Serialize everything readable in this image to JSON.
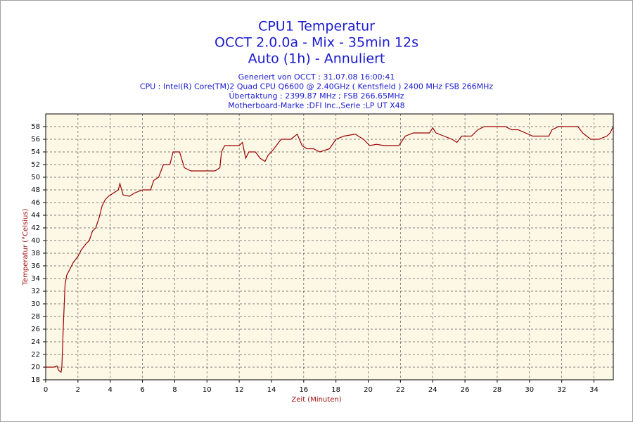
{
  "chart_data": {
    "type": "line",
    "title": [
      "CPU1 Temperatur",
      "OCCT 2.0.0a - Mix - 35min 12s",
      "Auto (1h) - Annuliert"
    ],
    "subtitle": [
      "Generiert von OCCT : 31.07.08 16:00:41",
      "CPU : Intel(R) Core(TM)2 Quad CPU Q6600 @ 2.40GHz ( Kentsfield ) 2400 MHz FSB 266MHz",
      "Übertaktung : 2399.87 MHz ; FSB 266.65MHz",
      "Motherboard-Marke :DFI Inc.,Serie :LP UT X48"
    ],
    "x_label": "Zeit (Minuten)",
    "y_label": "Temperatur (°Celsius)",
    "xlim": [
      0,
      35.2
    ],
    "ylim": [
      18,
      60
    ],
    "xticks": [
      0,
      2,
      4,
      6,
      8,
      10,
      12,
      14,
      16,
      18,
      20,
      22,
      24,
      26,
      28,
      30,
      32,
      34
    ],
    "yticks": [
      18,
      20,
      22,
      24,
      26,
      28,
      30,
      32,
      34,
      36,
      38,
      40,
      42,
      44,
      46,
      48,
      50,
      52,
      54,
      56,
      58
    ],
    "grid": true,
    "x": [
      0,
      0.5,
      0.7,
      0.8,
      0.95,
      1.0,
      1.1,
      1.2,
      1.3,
      1.5,
      1.7,
      2.0,
      2.2,
      2.5,
      2.7,
      2.9,
      3.1,
      3.3,
      3.5,
      3.7,
      3.9,
      4.2,
      4.5,
      4.6,
      4.8,
      5.2,
      5.5,
      6.0,
      6.5,
      6.7,
      7.0,
      7.3,
      7.7,
      7.9,
      8.3,
      8.6,
      9.0,
      9.5,
      10.5,
      10.8,
      10.9,
      11.1,
      12.0,
      12.2,
      12.4,
      12.6,
      13.0,
      13.3,
      13.6,
      13.8,
      14.0,
      14.3,
      14.6,
      15.2,
      15.6,
      15.9,
      16.2,
      16.6,
      17.0,
      17.6,
      18.0,
      18.5,
      19.2,
      19.7,
      20.1,
      20.5,
      21.0,
      21.9,
      22.3,
      22.8,
      23.8,
      24.0,
      24.2,
      24.7,
      25.2,
      25.5,
      25.8,
      26.4,
      26.8,
      27.2,
      28.5,
      28.9,
      29.3,
      30.2,
      31.2,
      31.4,
      31.8,
      33.0,
      33.3,
      33.8,
      34.3,
      34.8,
      35.0,
      35.2
    ],
    "series": [
      {
        "color": "#990000",
        "values": [
          20,
          20,
          20.2,
          19.5,
          19.2,
          20,
          27,
          33,
          34.5,
          35.5,
          36.5,
          37.5,
          38.5,
          39.5,
          40,
          41.5,
          42,
          43.5,
          45.5,
          46.5,
          47,
          47.5,
          48,
          49,
          47.2,
          47,
          47.5,
          48,
          48,
          49.5,
          50,
          52,
          52,
          54,
          54,
          51.5,
          51,
          51,
          51,
          51.5,
          54,
          55,
          55,
          55.5,
          53,
          54,
          54,
          53,
          52.5,
          53.5,
          54,
          55,
          56,
          56,
          56.8,
          55,
          54.5,
          54.5,
          54,
          54.5,
          56,
          56.5,
          56.8,
          56,
          55,
          55.2,
          55,
          55,
          56.5,
          57,
          57,
          57.8,
          57,
          56.5,
          56,
          55.5,
          56.5,
          56.5,
          57.5,
          58,
          58,
          57.5,
          57.5,
          56.5,
          56.5,
          57.5,
          58,
          58,
          57,
          56,
          56,
          56.5,
          57,
          58
        ]
      }
    ]
  }
}
